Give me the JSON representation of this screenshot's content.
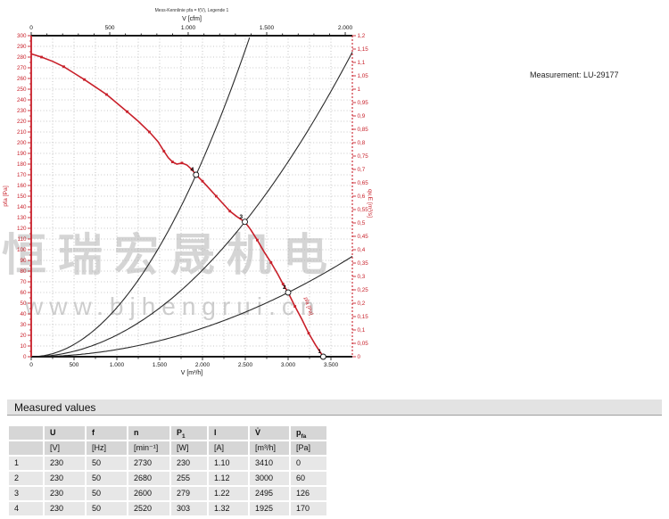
{
  "page": {
    "measurement_label": "Measurement: LU-29177"
  },
  "watermark": {
    "line1": "恒瑞宏晟机电",
    "line2": "www.bjhengrui.cn"
  },
  "chart_data": {
    "type": "line",
    "note": "Mess-Kennlinie pfa = f(V), Legende 1",
    "x_top": {
      "label": "V [cfm]",
      "tick_labels": [
        "0",
        "500",
        "1.000",
        "1.500",
        "2.000"
      ],
      "tick_x_mh": [
        0,
        917,
        1833,
        2750,
        3667
      ],
      "minor_step_mh": 183.4
    },
    "x_bottom": {
      "label": "V [m³/h]",
      "min": 0,
      "max": 3750,
      "major_step": 500,
      "minor_step": 250,
      "tick_labels": [
        "0",
        "500",
        "1.000",
        "1.500",
        "2.000",
        "2.500",
        "3.000",
        "3.500"
      ]
    },
    "y_left": {
      "label": "pfa [Pa]",
      "min": 0,
      "max": 300,
      "label_step": 10,
      "minor_step": 5
    },
    "y_right": {
      "label": "qv,E [m³/s]",
      "min": 0,
      "max": 1.2,
      "label_step": 0.05
    },
    "curve_label": "pfa [Pa]",
    "colors": {
      "curve": "#c8202a",
      "system_lines": "#2a2a2a",
      "grid": "#b5b5b5"
    },
    "pressure_curve": [
      [
        0,
        283
      ],
      [
        120,
        280
      ],
      [
        250,
        276
      ],
      [
        380,
        271
      ],
      [
        500,
        265
      ],
      [
        620,
        259
      ],
      [
        750,
        252
      ],
      [
        880,
        245
      ],
      [
        1000,
        237
      ],
      [
        1120,
        229
      ],
      [
        1250,
        220
      ],
      [
        1380,
        210
      ],
      [
        1480,
        201
      ],
      [
        1550,
        192
      ],
      [
        1600,
        186
      ],
      [
        1650,
        182
      ],
      [
        1700,
        180
      ],
      [
        1760,
        181
      ],
      [
        1820,
        179
      ],
      [
        1875,
        175
      ],
      [
        1925,
        170
      ],
      [
        2000,
        164
      ],
      [
        2080,
        157
      ],
      [
        2160,
        150
      ],
      [
        2240,
        143
      ],
      [
        2320,
        136
      ],
      [
        2400,
        131
      ],
      [
        2495,
        126
      ],
      [
        2560,
        119
      ],
      [
        2640,
        109
      ],
      [
        2720,
        98
      ],
      [
        2800,
        88
      ],
      [
        2880,
        77
      ],
      [
        2940,
        68
      ],
      [
        3000,
        60
      ],
      [
        3080,
        47
      ],
      [
        3160,
        35
      ],
      [
        3240,
        22
      ],
      [
        3320,
        11
      ],
      [
        3410,
        0
      ]
    ],
    "operating_points": [
      {
        "id": "1",
        "v_m3h": 3410,
        "pfa_pa": 0
      },
      {
        "id": "2",
        "v_m3h": 3000,
        "pfa_pa": 60
      },
      {
        "id": "3",
        "v_m3h": 2495,
        "pfa_pa": 126
      },
      {
        "id": "4",
        "v_m3h": 1925,
        "pfa_pa": 170
      }
    ],
    "system_parabolas_through_points": [
      "4",
      "3",
      "2"
    ]
  },
  "table": {
    "title": "Measured values",
    "columns": [
      {
        "symbol": "",
        "unit": ""
      },
      {
        "symbol": "U",
        "unit": "[V]"
      },
      {
        "symbol": "f",
        "unit": "[Hz]"
      },
      {
        "symbol": "n",
        "unit": "[min⁻¹]"
      },
      {
        "symbol": "P_1",
        "unit": "[W]"
      },
      {
        "symbol": "I",
        "unit": "[A]"
      },
      {
        "symbol": "V̇",
        "unit": "[m³/h]"
      },
      {
        "symbol": "p_fa",
        "unit": "[Pa]"
      }
    ],
    "rows": [
      [
        "1",
        "230",
        "50",
        "2730",
        "230",
        "1.10",
        "3410",
        "0"
      ],
      [
        "2",
        "230",
        "50",
        "2680",
        "255",
        "1.12",
        "3000",
        "60"
      ],
      [
        "3",
        "230",
        "50",
        "2600",
        "279",
        "1.22",
        "2495",
        "126"
      ],
      [
        "4",
        "230",
        "50",
        "2520",
        "303",
        "1.32",
        "1925",
        "170"
      ]
    ]
  }
}
